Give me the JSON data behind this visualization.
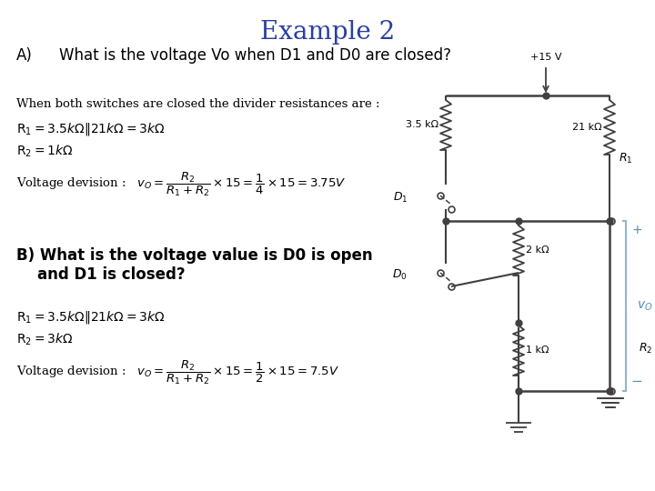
{
  "title": "Example 2",
  "title_color": "#2B3FA0",
  "title_fontsize": 20,
  "bg_color": "#FFFFFF",
  "text_color": "#000000",
  "section_a_label": "A)",
  "section_a_text": "What is the voltage Vo when D1 and D0 are closed?",
  "section_a_fontsize": 12,
  "line1_a": "When both switches are closed the divider resistances are :",
  "line2_a": "R",
  "line3_a": "R",
  "line4_a": "Voltage devision :",
  "section_b_text": "B) What is the voltage value is D0 is open\n    and D1 is closed?",
  "section_b_fontsize": 12,
  "line1_b": "R",
  "line2_b": "R",
  "line3_b": "Voltage devision :",
  "circuit_color": "#404040",
  "circuit_light_color": "#90B8C8",
  "vo_color": "#5090B0"
}
